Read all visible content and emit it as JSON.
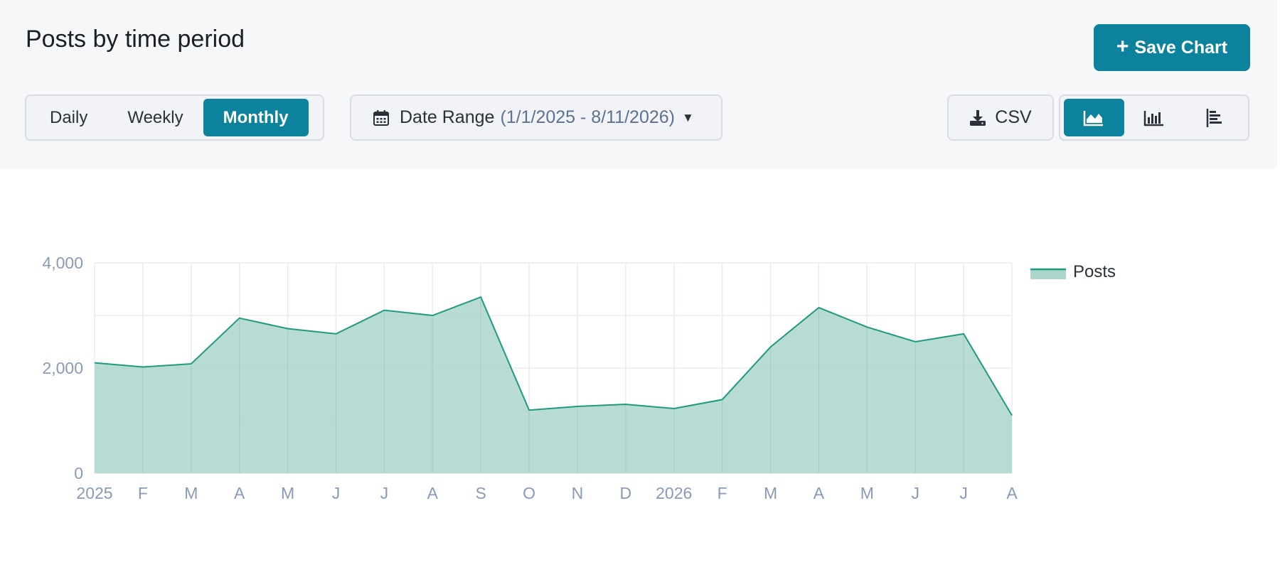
{
  "header": {
    "title": "Posts by time period",
    "save_label": "Save Chart",
    "periods": [
      "Daily",
      "Weekly",
      "Monthly"
    ],
    "active_period": "Monthly",
    "date_range_label": "Date Range",
    "date_range_value": "(1/1/2025 - 8/11/2026)",
    "csv_label": "CSV",
    "chart_types": [
      "area-chart-icon",
      "bar-chart-icon",
      "horizontal-bar-chart-icon"
    ],
    "active_chart_type": "area-chart-icon"
  },
  "colors": {
    "accent": "#0c829d",
    "series_line": "#1e9a7e",
    "series_fill": "#acd6cb",
    "axis_label": "#8a9ab4",
    "grid": "#e8ebef"
  },
  "chart_data": {
    "type": "area",
    "categories": [
      "2025",
      "F",
      "M",
      "A",
      "M",
      "J",
      "J",
      "A",
      "S",
      "O",
      "N",
      "D",
      "2026",
      "F",
      "M",
      "A",
      "M",
      "J",
      "J",
      "A"
    ],
    "series": [
      {
        "name": "Posts",
        "values": [
          2100,
          2020,
          2080,
          2950,
          2750,
          2650,
          3100,
          3000,
          3350,
          1200,
          1270,
          1310,
          1230,
          1400,
          2400,
          3150,
          2780,
          2500,
          2650,
          1100
        ]
      }
    ],
    "ylim": [
      0,
      4000
    ],
    "yticks": [
      0,
      2000,
      4000
    ],
    "ytick_labels": [
      "0",
      "2,000",
      "4,000"
    ],
    "grid": true,
    "legend": "right"
  }
}
